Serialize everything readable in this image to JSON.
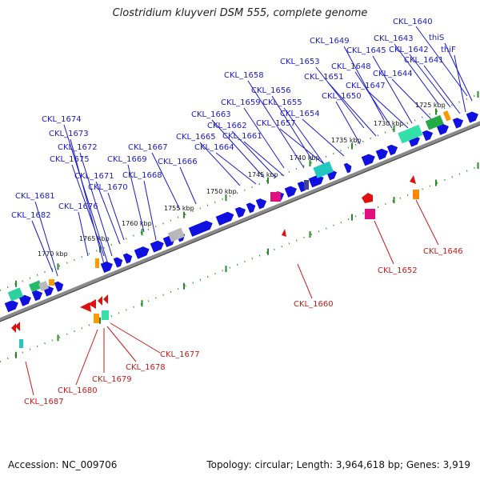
{
  "title": "Clostridium kluyveri DSM 555, complete genome",
  "accession": "Accession: NC_009706",
  "summary": "Topology: circular; Length: 3,964,618 bp; Genes: 3,919",
  "colors": {
    "backbone": "#8a8a8a",
    "ticks": "#2a8a2a",
    "forward_gene": "#1010e0",
    "reverse_gene": "#e01010",
    "forward_label": "#1a1acc",
    "reverse_label": "#cc1a1a"
  },
  "scale_ticks": [
    "1725 kbp",
    "1730 kbp",
    "1735 kbp",
    "1740 kbp",
    "1745 kbp",
    "1750 kbp",
    "1755 kbp",
    "1760 kbp",
    "1765 kbp",
    "1770 kbp"
  ],
  "forward_labels": [
    "CKL_1640",
    "thiS",
    "CKL_1643",
    "CKL_1642",
    "thiF",
    "CKL_1649",
    "CKL_1645",
    "CKL_1641",
    "CKL_1653",
    "CKL_1648",
    "CKL_1644",
    "CKL_1651",
    "CKL_1647",
    "CKL_1658",
    "CKL_1656",
    "CKL_1650",
    "CKL_1659",
    "CKL_1655",
    "CKL_1663",
    "CKL_1654",
    "CKL_1662",
    "CKL_1657",
    "CKL_1665",
    "CKL_1661",
    "CKL_1674",
    "CKL_1664",
    "CKL_1667",
    "CKL_1673",
    "CKL_1672",
    "CKL_1669",
    "CKL_1675",
    "CKL_1666",
    "CKL_1668",
    "CKL_1671",
    "CKL_1670",
    "CKL_1681",
    "CKL_1676",
    "CKL_1682"
  ],
  "reverse_labels": [
    "CKL_1646",
    "CKL_1652",
    "CKL_1660",
    "CKL_1677",
    "CKL_1678",
    "CKL_1679",
    "CKL_1680",
    "CKL_1687"
  ]
}
